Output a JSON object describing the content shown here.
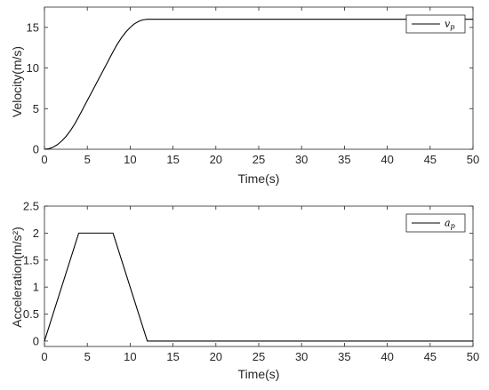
{
  "chart_data": [
    {
      "type": "line",
      "xlabel": "Time(s)",
      "ylabel": "Velocity(m/s)",
      "xlim": [
        0,
        50
      ],
      "ylim": [
        0,
        17.5
      ],
      "xticks": [
        0,
        5,
        10,
        15,
        20,
        25,
        30,
        35,
        40,
        45,
        50
      ],
      "xtick_labels": [
        "0",
        "5",
        "10",
        "15",
        "20",
        "25",
        "30",
        "35",
        "40",
        "45",
        "50"
      ],
      "yticks": [
        0,
        5,
        10,
        15
      ],
      "ytick_labels": [
        "0",
        "5",
        "10",
        "15"
      ],
      "grid": false,
      "legend_position": "top-right",
      "series": [
        {
          "name": "v_p",
          "legend_main": "v",
          "legend_sub": "p",
          "color": "#000000",
          "x": [
            0,
            0.5,
            1,
            1.5,
            2,
            2.5,
            3,
            3.5,
            4,
            5,
            6,
            7,
            8,
            8.5,
            9,
            9.5,
            10,
            10.5,
            11,
            11.5,
            12,
            15,
            20,
            25,
            30,
            35,
            40,
            45,
            50
          ],
          "y": [
            0,
            0.06,
            0.25,
            0.56,
            1.0,
            1.56,
            2.25,
            3.06,
            4.0,
            6.0,
            8.0,
            10.0,
            12.0,
            12.94,
            13.75,
            14.44,
            15.0,
            15.44,
            15.75,
            15.94,
            16.0,
            16.0,
            16.0,
            16.0,
            16.0,
            16.0,
            16.0,
            16.0,
            16.0
          ]
        }
      ]
    },
    {
      "type": "line",
      "xlabel": "Time(s)",
      "ylabel": "Acceleration(m/s²)",
      "xlim": [
        0,
        50
      ],
      "ylim": [
        -0.1,
        2.5
      ],
      "xticks": [
        0,
        5,
        10,
        15,
        20,
        25,
        30,
        35,
        40,
        45,
        50
      ],
      "xtick_labels": [
        "0",
        "5",
        "10",
        "15",
        "20",
        "25",
        "30",
        "35",
        "40",
        "45",
        "50"
      ],
      "yticks": [
        0,
        0.5,
        1,
        1.5,
        2,
        2.5
      ],
      "ytick_labels": [
        "0",
        "0.5",
        "1",
        "1.5",
        "2",
        "2.5"
      ],
      "grid": false,
      "legend_position": "top-right",
      "series": [
        {
          "name": "a_p",
          "legend_main": "a",
          "legend_sub": "p",
          "color": "#000000",
          "x": [
            0,
            4,
            8,
            12,
            50
          ],
          "y": [
            0,
            2,
            2,
            0,
            0
          ]
        }
      ]
    }
  ]
}
